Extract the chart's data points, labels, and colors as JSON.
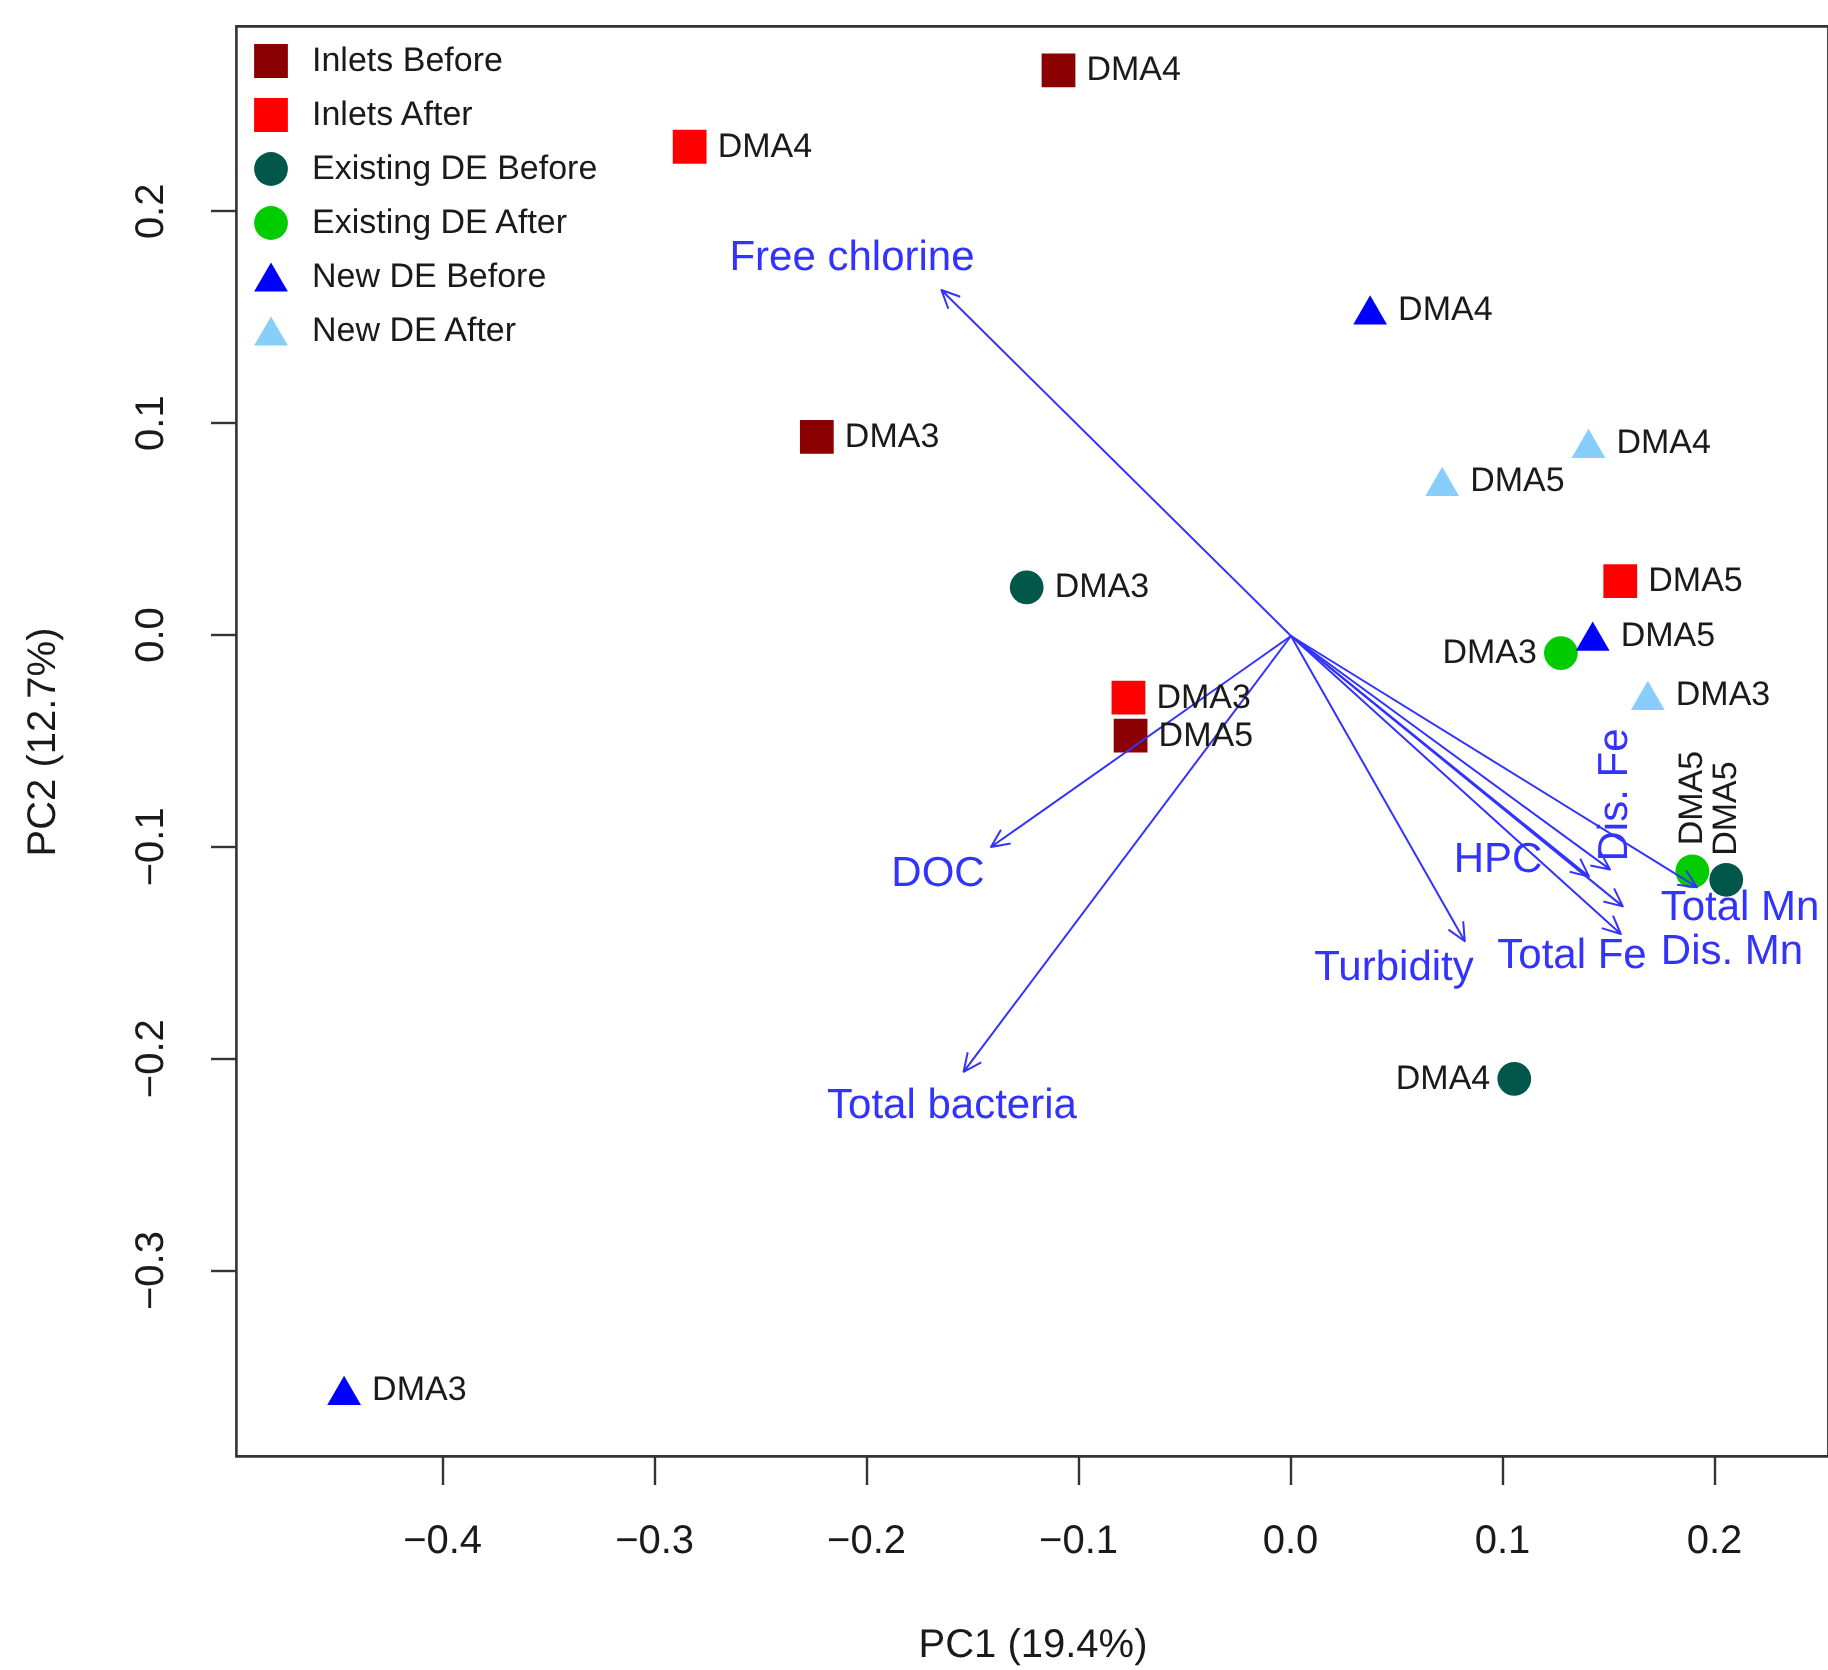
{
  "chart_data": {
    "type": "scatter",
    "xlabel": "PC1 (19.4%)",
    "ylabel": "PC2 (12.7%)",
    "xlim": [
      -0.497,
      0.254
    ],
    "ylim": [
      -0.388,
      0.287
    ],
    "xticks": [
      -0.4,
      -0.3,
      -0.2,
      -0.1,
      {
        "value": 0,
        "label": "0.0"
      },
      0.1,
      0.2
    ],
    "yticks": [
      -0.3,
      -0.2,
      -0.1,
      {
        "value": 0,
        "label": "0.0"
      },
      0.1,
      0.2
    ],
    "legend": "top left",
    "series": [
      {
        "name": "Inlets Before",
        "marker": "square",
        "color": "#8b0000",
        "x": [
          -0.109,
          -0.223,
          -0.075
        ],
        "values": [
          0.266,
          0.093,
          -0.048
        ]
      },
      {
        "name": "Inlets After",
        "marker": "square",
        "color": "#ff0000",
        "x": [
          -0.283,
          -0.076,
          0.156
        ],
        "values": [
          0.23,
          -0.03,
          0.025
        ]
      },
      {
        "name": "Existing DE Before",
        "marker": "circle",
        "color": "#00574a",
        "x": [
          -0.124,
          0.106,
          0.206
        ],
        "values": [
          0.022,
          -0.21,
          -0.116
        ]
      },
      {
        "name": "Existing DE After",
        "marker": "circle",
        "color": "#00cc00",
        "x": [
          0.128,
          0.19
        ],
        "values": [
          -0.009,
          -0.112
        ]
      },
      {
        "name": "New DE Before",
        "marker": "triangle",
        "color": "#0000ff",
        "x": [
          0.038,
          0.143,
          -0.446
        ],
        "values": [
          0.153,
          -0.001,
          -0.357
        ]
      },
      {
        "name": "New DE After",
        "marker": "triangle",
        "color": "#87cefa",
        "x": [
          0.141,
          0.072,
          0.169
        ],
        "values": [
          0.09,
          0.072,
          -0.029
        ]
      }
    ],
    "annotations": [
      "Free chlorine",
      "DOC",
      "Total bacteria",
      "Turbidity",
      "HPC",
      "Dis. Fe",
      "Total Fe",
      "Dis. Mn",
      "Total Mn",
      {
        "text": "DMA4",
        "x": -0.109,
        "y": 0.266
      },
      {
        "text": "DMA3",
        "x": -0.223,
        "y": 0.093
      },
      {
        "text": "DMA5",
        "x": -0.075,
        "y": -0.048
      },
      {
        "text": "DMA4",
        "x": -0.283,
        "y": 0.23
      },
      {
        "text": "DMA3",
        "x": -0.076,
        "y": -0.03
      },
      {
        "text": "DMA5",
        "x": 0.156,
        "y": 0.025
      },
      {
        "text": "DMA3",
        "x": -0.124,
        "y": 0.022
      },
      {
        "text": "DMA4",
        "x": 0.106,
        "y": -0.21
      },
      {
        "text": "DMA5",
        "x": 0.206,
        "y": -0.116
      },
      {
        "text": "DMA3",
        "x": 0.128,
        "y": -0.009
      },
      {
        "text": "DMA5",
        "x": 0.19,
        "y": -0.112
      },
      {
        "text": "DMA4",
        "x": 0.038,
        "y": 0.153
      },
      {
        "text": "DMA5",
        "x": 0.143,
        "y": -0.001
      },
      {
        "text": "DMA3",
        "x": -0.446,
        "y": -0.357
      },
      {
        "text": "DMA4",
        "x": 0.141,
        "y": 0.09
      },
      {
        "text": "DMA5",
        "x": 0.072,
        "y": 0.072
      },
      {
        "text": "DMA3",
        "x": 0.169,
        "y": -0.029
      }
    ]
  }
}
